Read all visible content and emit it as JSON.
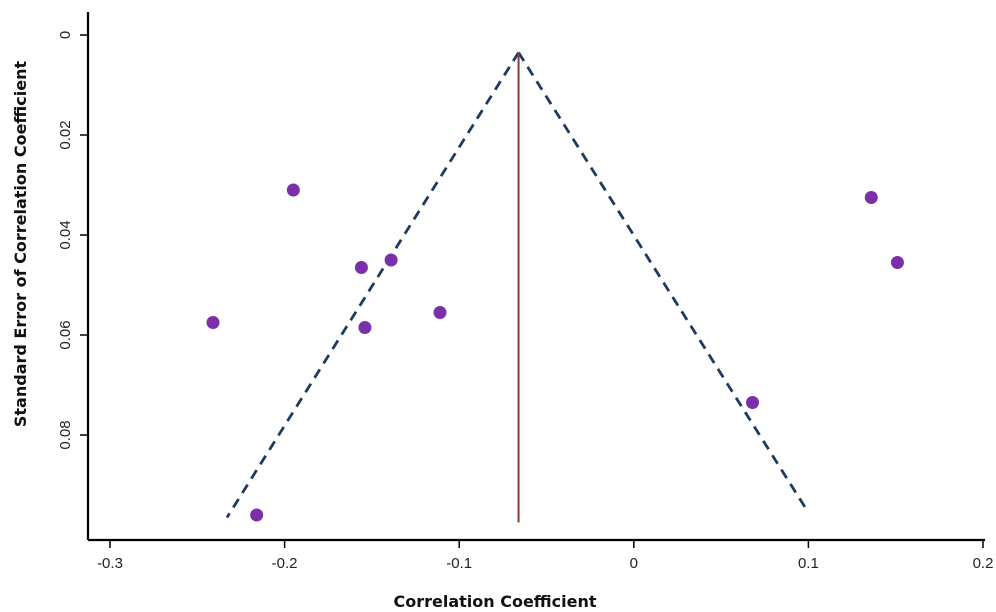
{
  "chart_data": {
    "type": "scatter",
    "title": "",
    "xlabel": "Correlation Coefficient",
    "ylabel": "Standard Error of Correlation Coefficient",
    "xlim": [
      -0.3,
      0.2
    ],
    "ylim": [
      0,
      0.1
    ],
    "y_inverted": true,
    "x_ticks": [
      "-0.3",
      "-0.2",
      "-0.1",
      "0",
      "0.1",
      "0.2"
    ],
    "y_ticks": [
      "0",
      "0.02",
      "0.04",
      "0.06",
      "0.08"
    ],
    "grid": false,
    "legend": "none",
    "colors": {
      "points": "#7b2fa8",
      "funnel": "#1f3a5f",
      "mean_line": "#8b3a3a",
      "axis": "#000000"
    },
    "pooled_estimate": -0.066,
    "funnel": {
      "apex": {
        "x": -0.066,
        "y": 0.0035
      },
      "left_base": {
        "x": -0.233,
        "y": 0.0965
      },
      "right_base": {
        "x": 0.1,
        "y": 0.0955
      }
    },
    "mean_line": {
      "x": -0.066,
      "y_start": 0.0035,
      "y_end": 0.0975
    },
    "points": [
      {
        "x": -0.241,
        "y": 0.0575
      },
      {
        "x": -0.216,
        "y": 0.096
      },
      {
        "x": -0.195,
        "y": 0.031
      },
      {
        "x": -0.156,
        "y": 0.0465
      },
      {
        "x": -0.154,
        "y": 0.0585
      },
      {
        "x": -0.139,
        "y": 0.045
      },
      {
        "x": -0.111,
        "y": 0.0555
      },
      {
        "x": 0.068,
        "y": 0.0735
      },
      {
        "x": 0.136,
        "y": 0.0325
      },
      {
        "x": 0.151,
        "y": 0.0455
      }
    ]
  }
}
